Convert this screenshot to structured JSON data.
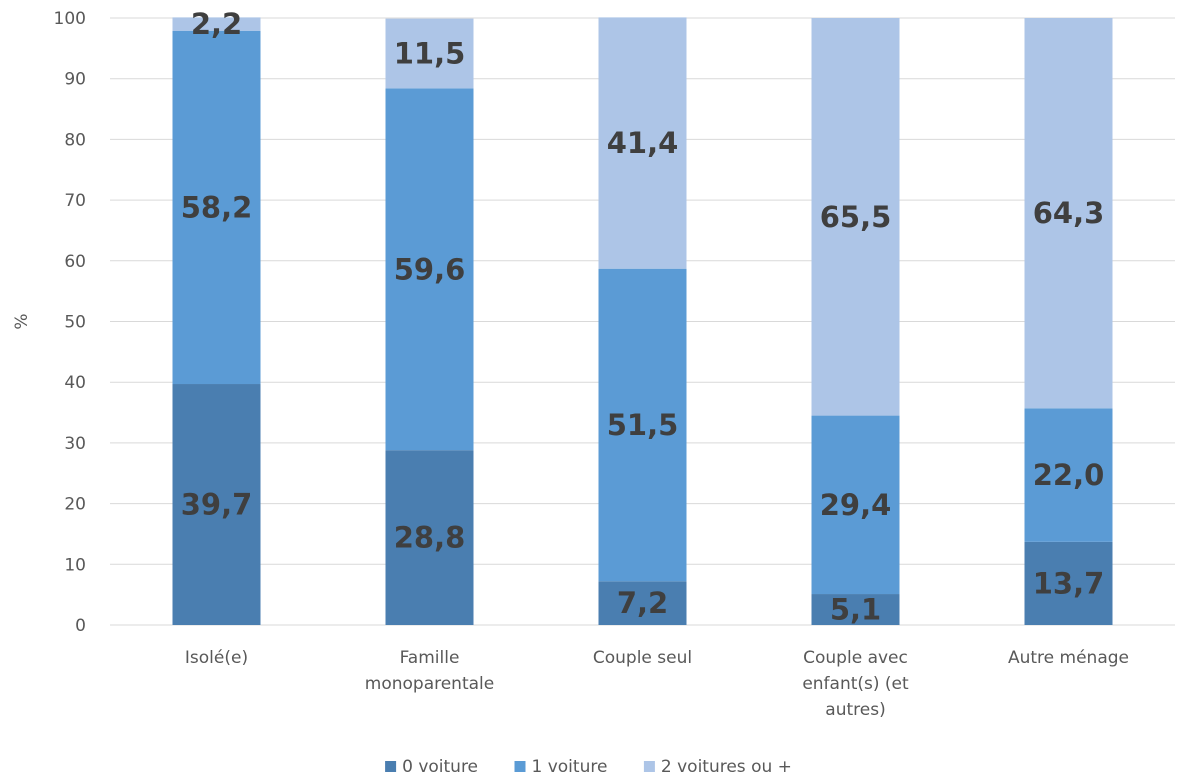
{
  "chart_data": {
    "type": "bar",
    "stacked": true,
    "categories": [
      [
        "Isolé(e)"
      ],
      [
        "Famille",
        "monoparentale"
      ],
      [
        "Couple seul"
      ],
      [
        "Couple avec",
        "enfant(s) (et",
        "autres)"
      ],
      [
        "Autre ménage"
      ]
    ],
    "series": [
      {
        "name": "0 voiture",
        "color": "#4a7eb0",
        "values": [
          39.7,
          28.8,
          7.2,
          5.1,
          13.7
        ],
        "labels": [
          "39,7",
          "28,8",
          "7,2",
          "5,1",
          "13,7"
        ]
      },
      {
        "name": "1 voiture",
        "color": "#5b9bd5",
        "values": [
          58.2,
          59.6,
          51.5,
          29.4,
          22.0
        ],
        "labels": [
          "58,2",
          "59,6",
          "51,5",
          "29,4",
          "22,0"
        ]
      },
      {
        "name": "2 voitures ou +",
        "color": "#adc5e7",
        "values": [
          2.2,
          11.5,
          41.4,
          65.5,
          64.3
        ],
        "labels": [
          "2,2",
          "11,5",
          "41,4",
          "65,5",
          "64,3"
        ]
      }
    ],
    "ylabel": "%",
    "ylim": [
      0,
      100
    ],
    "yticks": [
      0,
      10,
      20,
      30,
      40,
      50,
      60,
      70,
      80,
      90,
      100
    ],
    "grid": true,
    "legend": "bottom"
  }
}
